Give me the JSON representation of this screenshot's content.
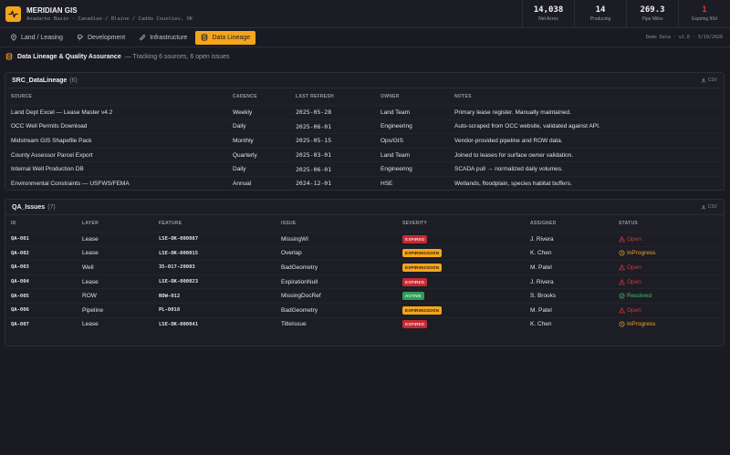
{
  "header": {
    "title": "MERIDIAN GIS",
    "subtitle": "Anadarko Basin · Canadian / Blaine / Caddo Counties, OK",
    "kpis": [
      {
        "value": "14,038",
        "label": "Net Acres"
      },
      {
        "value": "14",
        "label": "Producing"
      },
      {
        "value": "269.3",
        "label": "Pipe Miles"
      },
      {
        "value": "1",
        "label": "Expiring 90d"
      }
    ]
  },
  "tabs": [
    {
      "label": "Land / Leasing",
      "icon": "map-pin-icon"
    },
    {
      "label": "Development",
      "icon": "drill-icon"
    },
    {
      "label": "Infrastructure",
      "icon": "pipe-icon"
    },
    {
      "label": "Data Lineage",
      "icon": "database-icon"
    }
  ],
  "demo_label": "Demo Data · v1.0 · 5/19/2026",
  "page": {
    "title": "Data Lineage & Quality Assurance",
    "subtitle": "— Tracking 6 sources, 6 open issues"
  },
  "sources": {
    "name": "SRC_DataLineage",
    "count": "(6)",
    "csv_label": "CSV",
    "headers": [
      "SOURCE",
      "CADENCE",
      "LAST REFRESH",
      "OWNER",
      "NOTES"
    ],
    "rows": [
      {
        "source": "Land Dept Excel — Lease Master v4.2",
        "cadence": "Weekly",
        "refresh": "2025-05-28",
        "owner": "Land Team",
        "notes": "Primary lease register. Manually maintained."
      },
      {
        "source": "OCC Well Permits Download",
        "cadence": "Daily",
        "refresh": "2025-06-01",
        "owner": "Engineering",
        "notes": "Auto-scraped from OCC website, validated against API."
      },
      {
        "source": "Midstream GIS Shapefile Pack",
        "cadence": "Monthly",
        "refresh": "2025-05-15",
        "owner": "Ops/GIS",
        "notes": "Vendor-provided pipeline and ROW data."
      },
      {
        "source": "County Assessor Parcel Export",
        "cadence": "Quarterly",
        "refresh": "2025-03-01",
        "owner": "Land Team",
        "notes": "Joined to leases for surface owner validation."
      },
      {
        "source": "Internal Well Production DB",
        "cadence": "Daily",
        "refresh": "2025-06-01",
        "owner": "Engineering",
        "notes": "SCADA pull → normalized daily volumes."
      },
      {
        "source": "Environmental Constraints — USFWS/FEMA",
        "cadence": "Annual",
        "refresh": "2024-12-01",
        "owner": "HSE",
        "notes": "Wetlands, floodplain, species habitat buffers."
      }
    ]
  },
  "issues": {
    "name": "QA_Issues",
    "count": "(7)",
    "csv_label": "CSV",
    "headers": [
      "ID",
      "LAYER",
      "FEATURE",
      "ISSUE",
      "SEVERITY",
      "ASSIGNED",
      "STATUS"
    ],
    "rows": [
      {
        "id": "QA-001",
        "layer": "Lease",
        "feature": "LSE-OK-000087",
        "issue": "MissingWI",
        "severity": "EXPIRED",
        "sev_class": "b-expired",
        "assigned": "J. Rivera",
        "status": "Open",
        "st_class": "st-open"
      },
      {
        "id": "QA-002",
        "layer": "Lease",
        "feature": "LSE-OK-000015",
        "issue": "Overlap",
        "severity": "EXPIRINGSOON",
        "sev_class": "b-soon",
        "assigned": "K. Chen",
        "status": "InProgress",
        "st_class": "st-prog"
      },
      {
        "id": "QA-003",
        "layer": "Well",
        "feature": "35-017-20003",
        "issue": "BadGeometry",
        "severity": "EXPIRINGSOON",
        "sev_class": "b-soon",
        "assigned": "M. Patel",
        "status": "Open",
        "st_class": "st-open"
      },
      {
        "id": "QA-004",
        "layer": "Lease",
        "feature": "LSE-OK-000023",
        "issue": "ExpirationNull",
        "severity": "EXPIRED",
        "sev_class": "b-expired",
        "assigned": "J. Rivera",
        "status": "Open",
        "st_class": "st-open"
      },
      {
        "id": "QA-005",
        "layer": "ROW",
        "feature": "ROW-012",
        "issue": "MissingDocRef",
        "severity": "ACTIVE",
        "sev_class": "b-active",
        "assigned": "S. Brooks",
        "status": "Resolved",
        "st_class": "st-res"
      },
      {
        "id": "QA-006",
        "layer": "Pipeline",
        "feature": "PL-0018",
        "issue": "BadGeometry",
        "severity": "EXPIRINGSOON",
        "sev_class": "b-soon",
        "assigned": "M. Patel",
        "status": "Open",
        "st_class": "st-open"
      },
      {
        "id": "QA-007",
        "layer": "Lease",
        "feature": "LSE-OK-000041",
        "issue": "TitleIssue",
        "severity": "EXPIRED",
        "sev_class": "b-expired",
        "assigned": "K. Chen",
        "status": "InProgress",
        "st_class": "st-prog"
      }
    ]
  },
  "colors": {
    "accent": "#f4a51c",
    "danger": "#e0323a",
    "success": "#3fbf6a",
    "background": "#1a1b22"
  }
}
